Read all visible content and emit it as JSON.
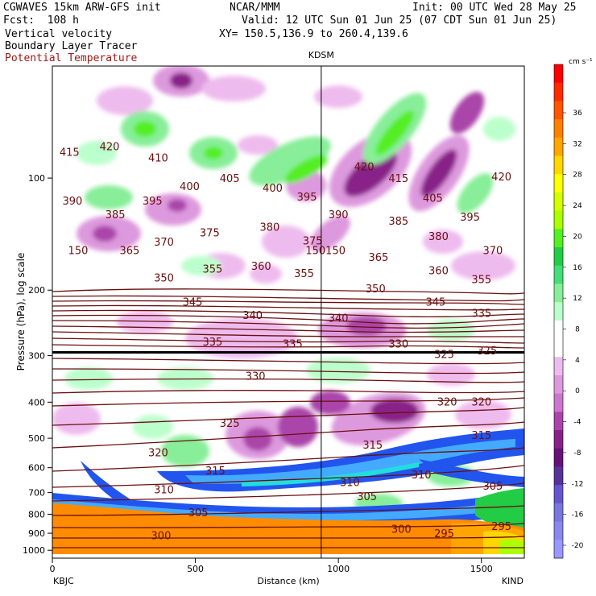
{
  "header": {
    "line1_left": "CGWAVES 15km ARW-GFS init",
    "line1_mid": "NCAR/MMM",
    "line1_right": "Init: 00 UTC Wed 28 May 25",
    "line2_left": "Fcst:  108 h",
    "line2_right": "Valid: 12 UTC Sun 01 Jun 25 (07 CDT Sun 01 Jun 25)",
    "line3_left": "Vertical velocity",
    "line3_right": "XY= 150.5,136.9 to 260.4,139.6",
    "line4_left": "Boundary Layer Tracer",
    "line5_left": "Potential Temperature"
  },
  "chart_data": {
    "type": "heatmap",
    "title": "",
    "xlabel": "Distance (km)",
    "ylabel": "Pressure (hPa), log scale",
    "xlim": [
      0,
      1650
    ],
    "ylim": [
      1050,
      50
    ],
    "y_scale": "log",
    "x_ticks": [
      0,
      500,
      1000,
      1500
    ],
    "y_ticks": [
      100,
      200,
      300,
      400,
      500,
      600,
      700,
      800,
      900,
      1000
    ],
    "station_labels": [
      {
        "name": "KBJC",
        "x": 0
      },
      {
        "name": "KDSM",
        "x": 940
      },
      {
        "name": "KIND",
        "x": 1650
      }
    ],
    "colorbar": {
      "units": "cm s⁻¹",
      "ticks": [
        36,
        32,
        28,
        24,
        20,
        16,
        12,
        8,
        4,
        0,
        -4,
        -8,
        -12,
        -16,
        -20
      ],
      "colors": [
        "#ff0000",
        "#ff2a00",
        "#ff5500",
        "#ff7f00",
        "#ffa500",
        "#ffd700",
        "#ffff00",
        "#d4ff00",
        "#aaff00",
        "#55ee22",
        "#22cc44",
        "#44dd77",
        "#88ee99",
        "#bbffcc",
        "#ffffff",
        "#ffffff",
        "#eebbee",
        "#dd99dd",
        "#cc77cc",
        "#aa44aa",
        "#882288",
        "#661177",
        "#553399",
        "#6655cc",
        "#7777dd",
        "#8888ee",
        "#9999ff"
      ]
    },
    "theta_contours": [
      {
        "label": "415",
        "x": 60,
        "p": 85
      },
      {
        "label": "420",
        "x": 200,
        "p": 82
      },
      {
        "label": "410",
        "x": 370,
        "p": 88
      },
      {
        "label": "400",
        "x": 480,
        "p": 105
      },
      {
        "label": "405",
        "x": 620,
        "p": 100
      },
      {
        "label": "400",
        "x": 770,
        "p": 106
      },
      {
        "label": "395",
        "x": 890,
        "p": 112
      },
      {
        "label": "420",
        "x": 1090,
        "p": 93
      },
      {
        "label": "415",
        "x": 1210,
        "p": 100
      },
      {
        "label": "405",
        "x": 1330,
        "p": 113
      },
      {
        "label": "420",
        "x": 1570,
        "p": 99
      },
      {
        "label": "390",
        "x": 70,
        "p": 115
      },
      {
        "label": "385",
        "x": 220,
        "p": 125
      },
      {
        "label": "395",
        "x": 350,
        "p": 115
      },
      {
        "label": "375",
        "x": 550,
        "p": 140
      },
      {
        "label": "380",
        "x": 760,
        "p": 135
      },
      {
        "label": "375",
        "x": 910,
        "p": 147
      },
      {
        "label": "390",
        "x": 1000,
        "p": 125
      },
      {
        "label": "385",
        "x": 1210,
        "p": 130
      },
      {
        "label": "395",
        "x": 1460,
        "p": 127
      },
      {
        "label": "380",
        "x": 1350,
        "p": 143
      },
      {
        "label": "370",
        "x": 390,
        "p": 148
      },
      {
        "label": "150",
        "x": 90,
        "p": 156
      },
      {
        "label": "365",
        "x": 270,
        "p": 156
      },
      {
        "label": "150",
        "x": 920,
        "p": 156
      },
      {
        "label": "150",
        "x": 990,
        "p": 156
      },
      {
        "label": "365",
        "x": 1140,
        "p": 163
      },
      {
        "label": "370",
        "x": 1540,
        "p": 156
      },
      {
        "label": "355",
        "x": 560,
        "p": 175
      },
      {
        "label": "360",
        "x": 730,
        "p": 172
      },
      {
        "label": "355",
        "x": 880,
        "p": 180
      },
      {
        "label": "360",
        "x": 1350,
        "p": 177
      },
      {
        "label": "350",
        "x": 390,
        "p": 185
      },
      {
        "label": "350",
        "x": 1130,
        "p": 198
      },
      {
        "label": "355",
        "x": 1500,
        "p": 187
      },
      {
        "label": "345",
        "x": 490,
        "p": 215
      },
      {
        "label": "340",
        "x": 700,
        "p": 233
      },
      {
        "label": "340",
        "x": 1000,
        "p": 237
      },
      {
        "label": "345",
        "x": 1340,
        "p": 215
      },
      {
        "label": "335",
        "x": 1500,
        "p": 230
      },
      {
        "label": "335",
        "x": 560,
        "p": 275
      },
      {
        "label": "335",
        "x": 840,
        "p": 278
      },
      {
        "label": "330",
        "x": 1210,
        "p": 278
      },
      {
        "label": "325",
        "x": 1370,
        "p": 297
      },
      {
        "label": "325",
        "x": 1520,
        "p": 290
      },
      {
        "label": "330",
        "x": 710,
        "p": 340
      },
      {
        "label": "320",
        "x": 1380,
        "p": 398
      },
      {
        "label": "320",
        "x": 1500,
        "p": 398
      },
      {
        "label": "325",
        "x": 620,
        "p": 455
      },
      {
        "label": "315",
        "x": 1120,
        "p": 520
      },
      {
        "label": "315",
        "x": 1500,
        "p": 490
      },
      {
        "label": "320",
        "x": 370,
        "p": 545
      },
      {
        "label": "315",
        "x": 570,
        "p": 610
      },
      {
        "label": "310",
        "x": 1040,
        "p": 655
      },
      {
        "label": "310",
        "x": 1290,
        "p": 625
      },
      {
        "label": "305",
        "x": 1540,
        "p": 670
      },
      {
        "label": "310",
        "x": 390,
        "p": 685
      },
      {
        "label": "305",
        "x": 1100,
        "p": 715
      },
      {
        "label": "305",
        "x": 510,
        "p": 790
      },
      {
        "label": "300",
        "x": 1220,
        "p": 875
      },
      {
        "label": "295",
        "x": 1370,
        "p": 900
      },
      {
        "label": "295",
        "x": 1570,
        "p": 860
      },
      {
        "label": "300",
        "x": 380,
        "p": 910
      }
    ]
  }
}
